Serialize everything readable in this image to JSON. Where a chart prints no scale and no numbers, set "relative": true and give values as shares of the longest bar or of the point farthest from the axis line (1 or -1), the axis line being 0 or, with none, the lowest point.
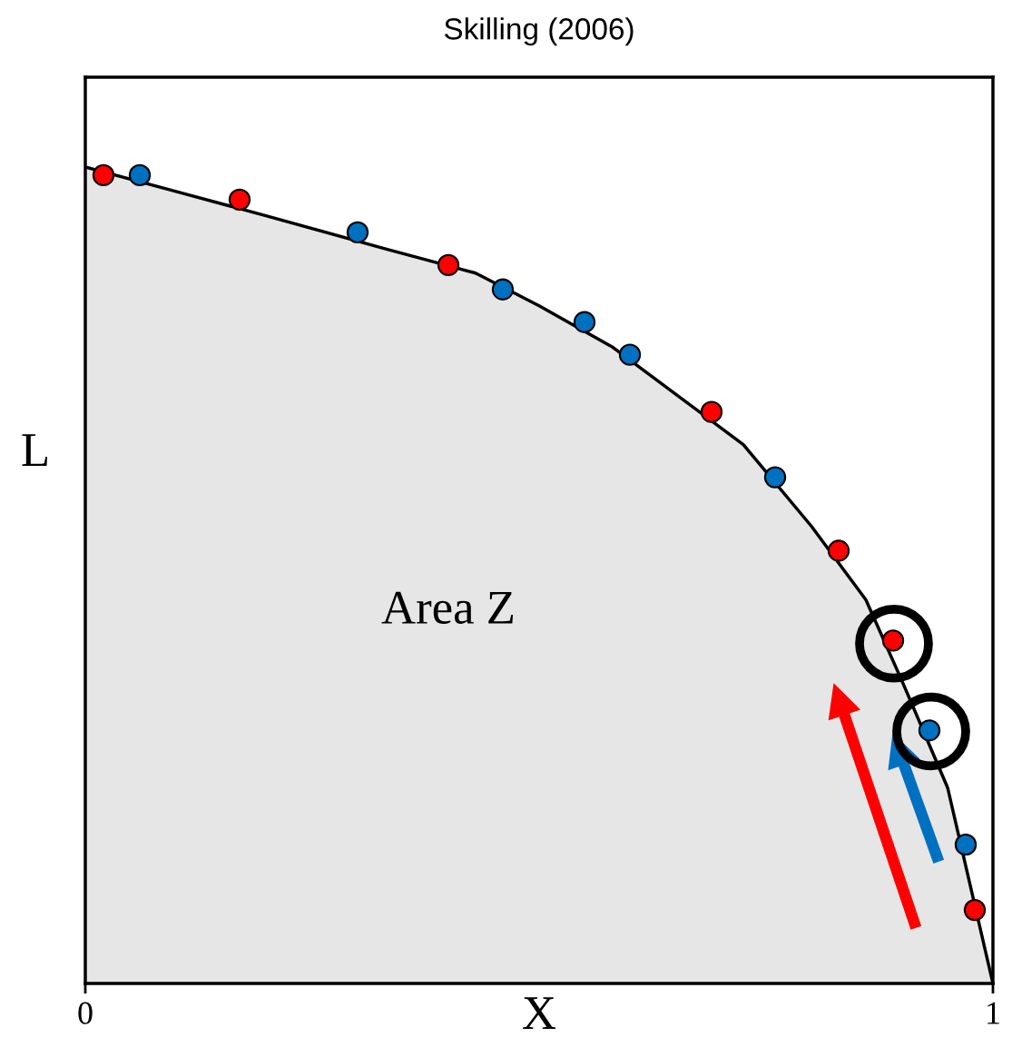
{
  "chart_data": {
    "type": "scatter",
    "title": "Skilling (2006)",
    "xlabel": "X",
    "ylabel": "L",
    "relative": true,
    "xlim": [
      0,
      1
    ],
    "xticks": [
      0,
      1
    ],
    "tick_labels": "x",
    "annotations": [
      "Area Z"
    ],
    "series": [
      {
        "type": "area",
        "color": "#e6e6e6",
        "x": [
          0,
          0.1,
          0.2,
          0.33,
          0.43,
          0.5,
          0.58,
          0.725,
          0.8,
          0.86,
          0.9,
          0.95,
          1.0
        ],
        "values": [
          1.0,
          0.97,
          0.94,
          0.9,
          0.87,
          0.83,
          0.78,
          0.66,
          0.56,
          0.47,
          0.37,
          0.24,
          0
        ]
      },
      {
        "color": "#ff0000",
        "marker": "circle",
        "x": [
          0.02,
          0.17,
          0.4,
          0.69,
          0.83,
          0.89,
          0.98
        ],
        "values": [
          0.99,
          0.96,
          0.88,
          0.7,
          0.53,
          0.42,
          0.09
        ]
      },
      {
        "color": "#0070c0",
        "marker": "circle",
        "x": [
          0.06,
          0.3,
          0.46,
          0.55,
          0.6,
          0.76,
          0.93,
          0.97
        ],
        "values": [
          0.99,
          0.92,
          0.85,
          0.81,
          0.77,
          0.62,
          0.31,
          0.17
        ]
      }
    ]
  }
}
